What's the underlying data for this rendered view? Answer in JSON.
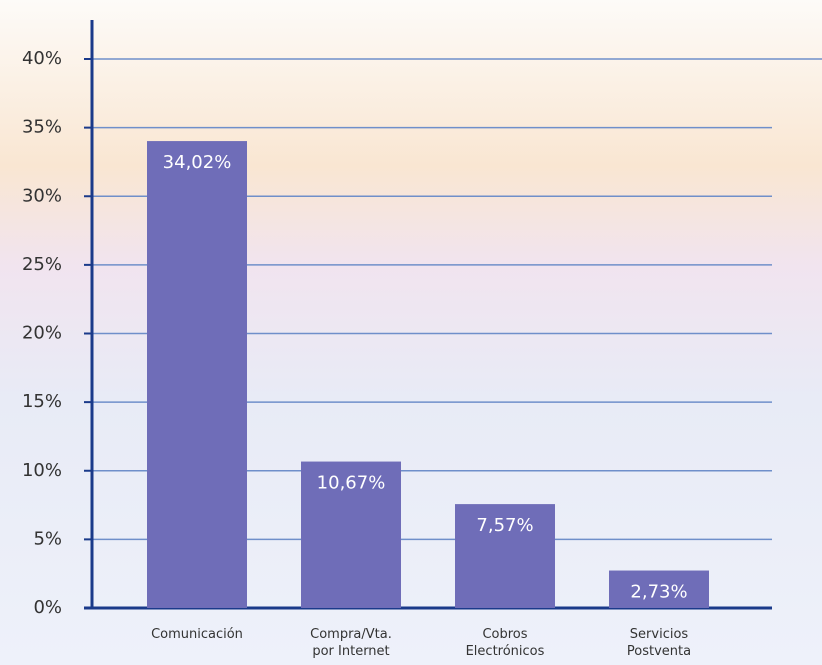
{
  "chart_data": {
    "type": "bar",
    "categories": [
      "Comunicación",
      "Compra/Vta.\npor Internet",
      "Cobros\nElectrónicos",
      "Servicios\nPostventa"
    ],
    "values": [
      34.02,
      10.67,
      7.57,
      2.73
    ],
    "value_labels": [
      "34,02%",
      "10,67%",
      "7,57%",
      "2,73%"
    ],
    "color": "#6f6db8",
    "ylim": [
      0,
      40
    ],
    "yticks": [
      {
        "value": 0,
        "label": "0%"
      },
      {
        "value": 5,
        "label": "5%"
      },
      {
        "value": 10,
        "label": "10%"
      },
      {
        "value": 15,
        "label": "15%"
      },
      {
        "value": 20,
        "label": "20%"
      },
      {
        "value": 25,
        "label": "25%"
      },
      {
        "value": 30,
        "label": "30%"
      },
      {
        "value": 35,
        "label": "35%"
      },
      {
        "value": 40,
        "label": "40%"
      }
    ],
    "grid": true
  }
}
